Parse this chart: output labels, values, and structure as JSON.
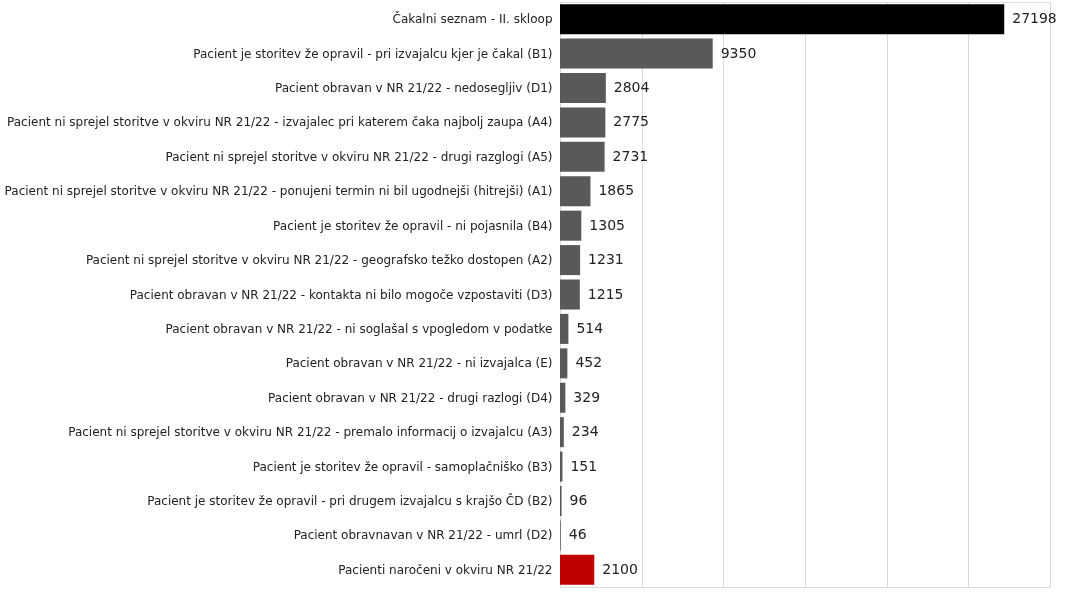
{
  "chart_data": {
    "type": "bar",
    "orientation": "horizontal",
    "categories": [
      "Čakalni seznam - II. skloop",
      "Pacient je storitev že opravil - pri izvajalcu kjer je čakal (B1)",
      "Pacient obravan v NR 21/22 - nedosegljiv (D1)",
      "Pacient ni sprejel storitve v okviru NR 21/22 - izvajalec pri katerem čaka najbolj zaupa (A4)",
      "Pacient ni sprejel storitve v okviru NR 21/22 - drugi razglogi (A5)",
      "Pacient ni sprejel storitve v okviru NR 21/22 - ponujeni termin ni bil ugodnejši (hitrejši) (A1)",
      "Pacient je storitev že opravil - ni pojasnila (B4)",
      "Pacient ni sprejel storitve v okviru NR 21/22 - geografsko težko dostopen (A2)",
      "Pacient obravan v NR 21/22 - kontakta ni bilo mogoče vzpostaviti (D3)",
      "Pacient obravan v NR 21/22 - ni soglašal s vpogledom v podatke",
      "Pacient obravan v NR 21/22 - ni izvajalca (E)",
      "Pacient obravan v NR 21/22 - drugi razlogi (D4)",
      "Pacient ni sprejel storitve v okviru NR 21/22 - premalo informacij o izvajalcu (A3)",
      "Pacient je storitev že opravil - samoplačniško (B3)",
      "Pacient je storitev že opravil - pri drugem izvajalcu s krajšo ČD (B2)",
      "Pacient obravnavan v NR 21/22 - umrl (D2)",
      "Pacienti naročeni v okviru NR 21/22"
    ],
    "values": [
      27198,
      9350,
      2804,
      2775,
      2731,
      1865,
      1305,
      1231,
      1215,
      514,
      452,
      329,
      234,
      151,
      96,
      46,
      2100
    ],
    "colors": [
      "#000000",
      "#595959",
      "#595959",
      "#595959",
      "#595959",
      "#595959",
      "#595959",
      "#595959",
      "#595959",
      "#595959",
      "#595959",
      "#595959",
      "#595959",
      "#595959",
      "#595959",
      "#595959",
      "#c00000"
    ],
    "xlim": [
      0,
      30000
    ],
    "xticks": [
      {
        "value": 0,
        "label": null
      },
      {
        "value": 5000,
        "label": null
      },
      {
        "value": 10000,
        "label": null
      },
      {
        "value": 15000,
        "label": null
      },
      {
        "value": 20000,
        "label": null
      },
      {
        "value": 25000,
        "label": null
      },
      {
        "value": 30000,
        "label": null
      }
    ],
    "grid": "x",
    "tick_labels": "y",
    "data_labels": true
  }
}
